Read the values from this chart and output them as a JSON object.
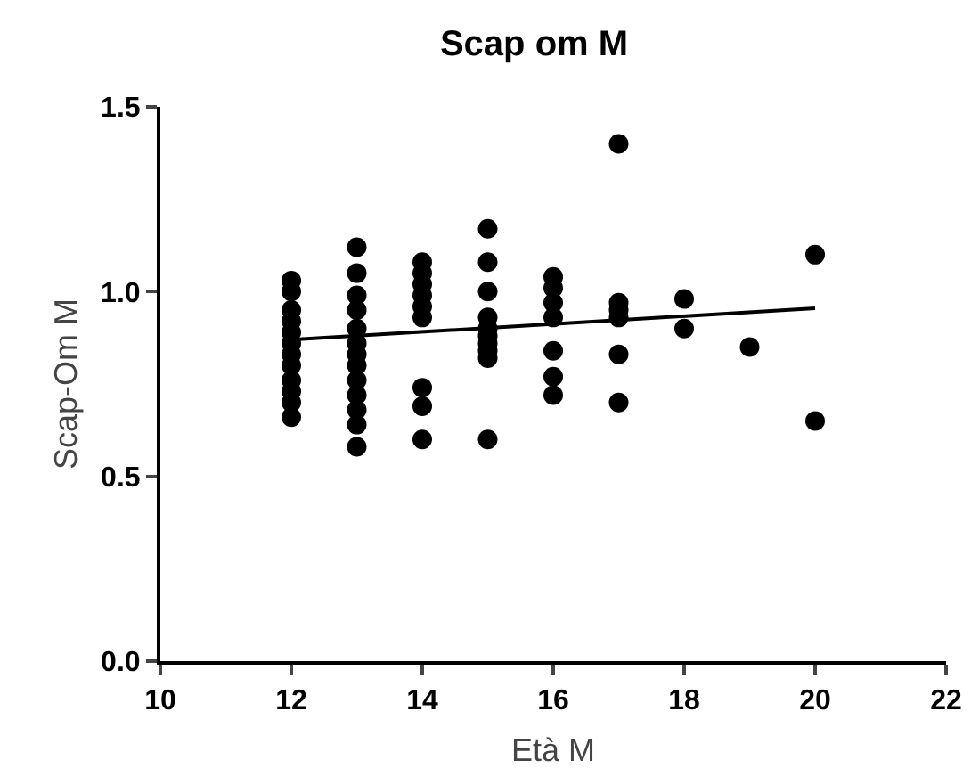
{
  "chart_data": {
    "type": "scatter",
    "title": "Scap om M",
    "xlabel": "Età M",
    "ylabel": "Scap-Om M",
    "xlim": [
      10,
      22
    ],
    "xticks": [
      10,
      12,
      14,
      16,
      18,
      20,
      22
    ],
    "ylim": [
      0,
      1.5
    ],
    "yticks": [
      {
        "value": 0,
        "label": "0.0"
      },
      {
        "value": 0.5,
        "label": "0.5"
      },
      {
        "value": 1,
        "label": "1.0"
      },
      {
        "value": 1.5,
        "label": "1.5"
      }
    ],
    "grid": false,
    "legend": false,
    "marker": "circle",
    "series": [
      {
        "color": "#000000",
        "x": [
          12,
          12,
          12,
          12,
          12,
          12,
          12,
          12,
          12,
          12,
          12,
          12,
          13,
          13,
          13,
          13,
          13,
          13,
          13,
          13,
          13,
          13,
          13,
          13,
          13,
          14,
          14,
          14,
          14,
          14,
          14,
          14,
          14,
          14,
          15,
          15,
          15,
          15,
          15,
          15,
          15,
          15,
          15,
          15,
          16,
          16,
          16,
          16,
          16,
          16,
          16,
          17,
          17,
          17,
          17,
          17,
          17,
          18,
          18,
          19,
          20,
          20
        ],
        "values": [
          1.03,
          1.0,
          0.95,
          0.92,
          0.89,
          0.86,
          0.83,
          0.8,
          0.76,
          0.73,
          0.7,
          0.66,
          1.12,
          1.05,
          0.99,
          0.95,
          0.9,
          0.86,
          0.83,
          0.8,
          0.76,
          0.72,
          0.68,
          0.64,
          0.58,
          1.08,
          1.05,
          1.02,
          0.99,
          0.96,
          0.93,
          0.74,
          0.69,
          0.6,
          1.17,
          1.08,
          1.0,
          0.93,
          0.9,
          0.88,
          0.86,
          0.84,
          0.82,
          0.6,
          1.04,
          1.01,
          0.97,
          0.93,
          0.84,
          0.77,
          0.72,
          1.4,
          0.97,
          0.95,
          0.93,
          0.83,
          0.7,
          0.98,
          0.9,
          0.85,
          1.1,
          0.65
        ]
      },
      {
        "type": "line",
        "color": "#000000",
        "marker": "none",
        "x": [
          12,
          20
        ],
        "values": [
          0.87,
          0.955
        ]
      }
    ]
  }
}
